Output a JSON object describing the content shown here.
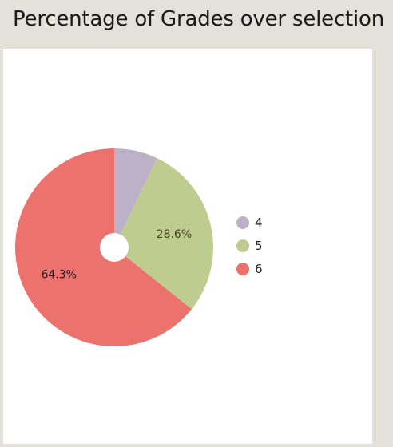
{
  "header": {
    "title": "Percentage of Grades over selection"
  },
  "chart_data": {
    "type": "pie",
    "title": "Percentage of Grades over selection",
    "categories": [
      "4",
      "5",
      "6"
    ],
    "values": [
      7.1,
      28.6,
      64.3
    ],
    "data_labels": [
      "",
      "28.6%",
      "64.3%"
    ],
    "colors": [
      "#bcb1c7",
      "#bfcc8f",
      "#ec726e"
    ],
    "label_colors": [
      "#333333",
      "#4a4220",
      "#1a1a1a"
    ],
    "legend": {
      "placement": "right",
      "entries": [
        "4",
        "5",
        "6"
      ]
    },
    "donut_hole": true,
    "start_angle_deg": 0,
    "direction": "clockwise"
  }
}
